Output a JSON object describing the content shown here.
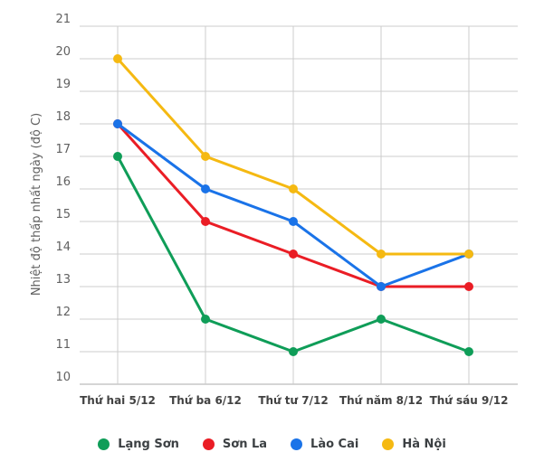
{
  "chart_data": {
    "type": "line",
    "title": "",
    "xlabel": "",
    "ylabel": "Nhiệt độ thấp nhất ngày (độ C)",
    "categories": [
      "Thứ hai 5/12",
      "Thứ ba 6/12",
      "Thứ tư 7/12",
      "Thứ năm 8/12",
      "Thứ sáu 9/12"
    ],
    "series": [
      {
        "name": "Lạng Sơn",
        "color": "#0F9D58",
        "values": [
          17,
          12,
          11,
          12,
          11
        ]
      },
      {
        "name": "Sơn La",
        "color": "#EA1D25",
        "values": [
          18,
          15,
          14,
          13,
          13
        ]
      },
      {
        "name": "Lào Cai",
        "color": "#1A73E8",
        "values": [
          18,
          16,
          15,
          13,
          14
        ]
      },
      {
        "name": "Hà Nội",
        "color": "#F5B912",
        "values": [
          20,
          17,
          16,
          14,
          14
        ]
      }
    ],
    "y_ticks": [
      10,
      11,
      12,
      13,
      14,
      15,
      16,
      17,
      18,
      19,
      20,
      21
    ],
    "ylim": [
      10,
      21
    ],
    "grid": true,
    "legend_position": "bottom"
  },
  "style": {
    "grid_color": "#CCCCCC",
    "baseline_color": "#ABABAB",
    "tick_label_color": "#616161",
    "x_label_color": "#424242",
    "axis_title_color": "#616161",
    "legend_text_color": "#3C4043",
    "background": "#FFFFFF"
  }
}
